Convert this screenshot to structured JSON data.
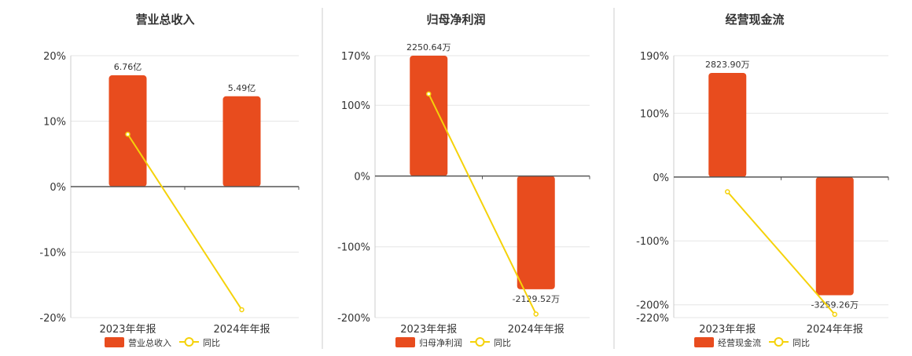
{
  "chart_data": [
    {
      "type": "bar",
      "title": "营业总收入",
      "categories": [
        "2023年年报",
        "2024年年报"
      ],
      "bar_labels": [
        "6.76亿",
        "5.49亿"
      ],
      "ylim": [
        -20,
        20
      ],
      "yticks": [
        -20,
        -10,
        0,
        10,
        20
      ],
      "ytick_labels": [
        "-20%",
        "-10%",
        "0%",
        "10%",
        "20%"
      ],
      "series": [
        {
          "name": "营业总收入",
          "type": "bar",
          "values": [
            17,
            13.8
          ],
          "color": "#e84c1e"
        },
        {
          "name": "同比",
          "type": "line",
          "values": [
            8,
            -18.8
          ],
          "color": "#f5d20a"
        }
      ],
      "legend": "bottom"
    },
    {
      "type": "bar",
      "title": "归母净利润",
      "categories": [
        "2023年年报",
        "2024年年报"
      ],
      "bar_labels": [
        "2250.64万",
        "-2129.52万"
      ],
      "ylim": [
        -200,
        170
      ],
      "yticks": [
        -200,
        -100,
        0,
        100,
        170
      ],
      "ytick_labels": [
        "-200%",
        "-100%",
        "0%",
        "100%",
        "170%"
      ],
      "series": [
        {
          "name": "归母净利润",
          "type": "bar",
          "values": [
            170,
            -160
          ],
          "color": "#e84c1e"
        },
        {
          "name": "同比",
          "type": "line",
          "values": [
            116,
            -195
          ],
          "color": "#f5d20a"
        }
      ],
      "legend": "bottom"
    },
    {
      "type": "bar",
      "title": "经营现金流",
      "categories": [
        "2023年年报",
        "2024年年报"
      ],
      "bar_labels": [
        "2823.90万",
        "-3259.26万"
      ],
      "ylim": [
        -220,
        190
      ],
      "yticks": [
        -220,
        -200,
        -100,
        0,
        100,
        190
      ],
      "ytick_labels": [
        "-220%",
        "-200%",
        "-100%",
        "0%",
        "100%",
        "190%"
      ],
      "series": [
        {
          "name": "经营现金流",
          "type": "bar",
          "values": [
            163,
            -185
          ],
          "color": "#e84c1e"
        },
        {
          "name": "同比",
          "type": "line",
          "values": [
            -23,
            -215
          ],
          "color": "#f5d20a"
        }
      ],
      "legend": "bottom"
    }
  ]
}
